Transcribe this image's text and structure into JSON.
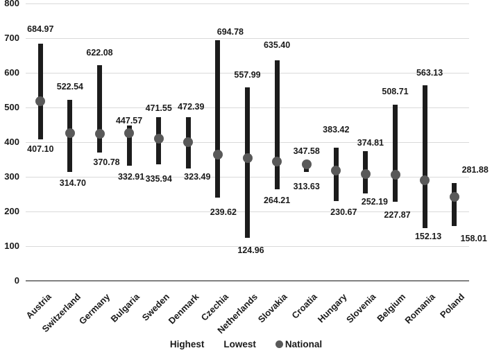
{
  "chart_data": {
    "type": "stock-hilo",
    "title": "",
    "xlabel": "",
    "ylabel": "",
    "categories": [
      "Austria",
      "Switzerland",
      "Germany",
      "Bulgaria",
      "Sweden",
      "Denmark",
      "Czechia",
      "Netherlands",
      "Slovakia",
      "Croatia",
      "Hungary",
      "Slovenia",
      "Belgium",
      "Romania",
      "Poland"
    ],
    "series": [
      {
        "name": "Highest",
        "marker": "black-vertical-bar",
        "values": [
          684.97,
          522.54,
          622.08,
          447.57,
          471.55,
          472.39,
          694.78,
          557.99,
          635.4,
          347.58,
          383.42,
          374.81,
          508.71,
          563.13,
          281.88
        ],
        "labeled": true
      },
      {
        "name": "Lowest",
        "marker": "black-vertical-bar",
        "values": [
          407.1,
          314.7,
          370.78,
          332.91,
          335.94,
          323.49,
          239.62,
          124.96,
          264.21,
          313.63,
          230.67,
          252.19,
          227.87,
          152.13,
          158.01
        ],
        "labeled": true
      },
      {
        "name": "National",
        "marker": "gray-dot",
        "values": [
          518,
          427,
          424,
          426,
          410,
          400,
          364,
          354,
          344,
          336,
          318,
          308,
          306,
          290,
          242
        ],
        "labeled": false,
        "estimated": true
      }
    ],
    "ylim": [
      0,
      800
    ],
    "ytick_step": 100,
    "ytick_labels": [
      "0",
      "100",
      "200",
      "300",
      "400",
      "500",
      "600",
      "700",
      "800"
    ],
    "grid": true,
    "legend": {
      "position": "bottom",
      "items": [
        "Highest",
        "Lowest",
        "National"
      ]
    },
    "colors": {
      "bar": "#1c1c1c",
      "dot": "#595959",
      "grid": "#d9d9d9",
      "axis": "#808080",
      "text": "#1a1a1a"
    },
    "label_offsets": {
      "highest_dx": [
        0,
        0,
        0,
        0,
        0,
        4,
        18,
        0,
        0,
        0,
        0,
        7,
        0,
        7,
        30
      ],
      "highest_dy": [
        -4,
        -2,
        -1,
        10,
        4,
        2,
        5,
        -1,
        -5,
        4,
        -9,
        5,
        -2,
        -1,
        -2
      ],
      "lowest_dx": [
        0,
        4,
        10,
        3,
        0,
        13,
        8,
        5,
        0,
        0,
        11,
        13,
        3,
        5,
        28
      ],
      "lowest_dy": [
        -1,
        1,
        -1,
        1,
        6,
        -3,
        6,
        3,
        1,
        6,
        1,
        -3,
        4,
        -3,
        3
      ]
    }
  }
}
